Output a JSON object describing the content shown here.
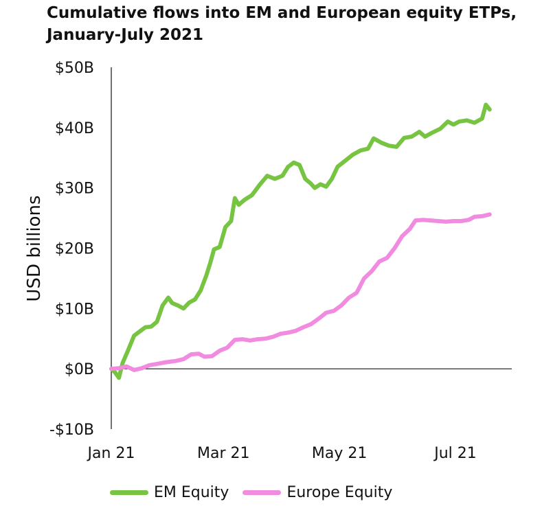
{
  "chart_data": {
    "type": "line",
    "title": "Cumulative flows into EM and European equity ETPs, January-July 2021",
    "xlabel": "",
    "ylabel": "USD billions",
    "ylim": [
      -10,
      50
    ],
    "yticks": [
      50,
      40,
      30,
      20,
      10,
      0,
      -10
    ],
    "ytick_labels": [
      "$50B",
      "$40B",
      "$30B",
      "$20B",
      "$10B",
      "$0B",
      "-$10B"
    ],
    "xlim": [
      "2021-01-01",
      "2021-07-31"
    ],
    "xticks": [
      "2021-01-01",
      "2021-03-01",
      "2021-05-01",
      "2021-07-01"
    ],
    "xtick_labels": [
      "Jan 21",
      "Mar 21",
      "May 21",
      "Jul 21"
    ],
    "grid": false,
    "legend_position": "bottom",
    "series": [
      {
        "name": "EM Equity",
        "color": "#76c442",
        "points": [
          [
            "2021-01-01",
            0
          ],
          [
            "2021-01-03",
            -0.6
          ],
          [
            "2021-01-05",
            -1.5
          ],
          [
            "2021-01-07",
            1
          ],
          [
            "2021-01-10",
            3.2
          ],
          [
            "2021-01-13",
            5.5
          ],
          [
            "2021-01-16",
            6.2
          ],
          [
            "2021-01-19",
            6.9
          ],
          [
            "2021-01-22",
            7.0
          ],
          [
            "2021-01-25",
            7.8
          ],
          [
            "2021-01-28",
            10.5
          ],
          [
            "2021-01-31",
            11.8
          ],
          [
            "2021-02-02",
            10.9
          ],
          [
            "2021-02-05",
            10.5
          ],
          [
            "2021-02-08",
            10.0
          ],
          [
            "2021-02-11",
            11.0
          ],
          [
            "2021-02-14",
            11.5
          ],
          [
            "2021-02-17",
            13.0
          ],
          [
            "2021-02-20",
            15.5
          ],
          [
            "2021-02-22",
            17.5
          ],
          [
            "2021-02-24",
            19.8
          ],
          [
            "2021-02-27",
            20.2
          ],
          [
            "2021-03-02",
            23.5
          ],
          [
            "2021-03-05",
            24.5
          ],
          [
            "2021-03-07",
            28.3
          ],
          [
            "2021-03-09",
            27.2
          ],
          [
            "2021-03-12",
            28.0
          ],
          [
            "2021-03-16",
            28.8
          ],
          [
            "2021-03-20",
            30.5
          ],
          [
            "2021-03-24",
            32.0
          ],
          [
            "2021-03-28",
            31.5
          ],
          [
            "2021-04-01",
            32.0
          ],
          [
            "2021-04-04",
            33.5
          ],
          [
            "2021-04-07",
            34.2
          ],
          [
            "2021-04-10",
            33.8
          ],
          [
            "2021-04-13",
            31.5
          ],
          [
            "2021-04-16",
            30.7
          ],
          [
            "2021-04-18",
            30.0
          ],
          [
            "2021-04-21",
            30.6
          ],
          [
            "2021-04-24",
            30.2
          ],
          [
            "2021-04-27",
            31.5
          ],
          [
            "2021-04-30",
            33.5
          ],
          [
            "2021-05-04",
            34.5
          ],
          [
            "2021-05-08",
            35.5
          ],
          [
            "2021-05-12",
            36.2
          ],
          [
            "2021-05-16",
            36.5
          ],
          [
            "2021-05-19",
            38.2
          ],
          [
            "2021-05-23",
            37.5
          ],
          [
            "2021-05-27",
            37.0
          ],
          [
            "2021-05-31",
            36.8
          ],
          [
            "2021-06-04",
            38.3
          ],
          [
            "2021-06-08",
            38.5
          ],
          [
            "2021-06-12",
            39.3
          ],
          [
            "2021-06-15",
            38.5
          ],
          [
            "2021-06-19",
            39.2
          ],
          [
            "2021-06-23",
            39.8
          ],
          [
            "2021-06-27",
            41.0
          ],
          [
            "2021-06-30",
            40.5
          ],
          [
            "2021-07-03",
            41.0
          ],
          [
            "2021-07-07",
            41.2
          ],
          [
            "2021-07-11",
            40.8
          ],
          [
            "2021-07-15",
            41.5
          ],
          [
            "2021-07-17",
            43.8
          ],
          [
            "2021-07-19",
            43.0
          ]
        ]
      },
      {
        "name": "Europe Equity",
        "color": "#f08be0",
        "points": [
          [
            "2021-01-01",
            0
          ],
          [
            "2021-01-05",
            0.1
          ],
          [
            "2021-01-09",
            0.4
          ],
          [
            "2021-01-13",
            -0.2
          ],
          [
            "2021-01-17",
            0.1
          ],
          [
            "2021-01-21",
            0.6
          ],
          [
            "2021-01-25",
            0.8
          ],
          [
            "2021-01-30",
            1.1
          ],
          [
            "2021-02-04",
            1.3
          ],
          [
            "2021-02-08",
            1.6
          ],
          [
            "2021-02-12",
            2.4
          ],
          [
            "2021-02-16",
            2.5
          ],
          [
            "2021-02-19",
            2.0
          ],
          [
            "2021-02-23",
            2.1
          ],
          [
            "2021-02-27",
            3.0
          ],
          [
            "2021-03-03",
            3.5
          ],
          [
            "2021-03-07",
            4.8
          ],
          [
            "2021-03-11",
            4.9
          ],
          [
            "2021-03-15",
            4.7
          ],
          [
            "2021-03-19",
            4.9
          ],
          [
            "2021-03-23",
            5.0
          ],
          [
            "2021-03-27",
            5.3
          ],
          [
            "2021-03-31",
            5.8
          ],
          [
            "2021-04-04",
            6.0
          ],
          [
            "2021-04-08",
            6.3
          ],
          [
            "2021-04-12",
            6.9
          ],
          [
            "2021-04-16",
            7.4
          ],
          [
            "2021-04-20",
            8.3
          ],
          [
            "2021-04-24",
            9.3
          ],
          [
            "2021-04-28",
            9.6
          ],
          [
            "2021-05-02",
            10.5
          ],
          [
            "2021-05-06",
            11.8
          ],
          [
            "2021-05-10",
            12.6
          ],
          [
            "2021-05-14",
            15.0
          ],
          [
            "2021-05-18",
            16.2
          ],
          [
            "2021-05-22",
            17.8
          ],
          [
            "2021-05-26",
            18.4
          ],
          [
            "2021-05-30",
            20.0
          ],
          [
            "2021-06-03",
            22.0
          ],
          [
            "2021-06-07",
            23.2
          ],
          [
            "2021-06-10",
            24.6
          ],
          [
            "2021-06-14",
            24.7
          ],
          [
            "2021-06-18",
            24.6
          ],
          [
            "2021-06-22",
            24.5
          ],
          [
            "2021-06-26",
            24.4
          ],
          [
            "2021-06-30",
            24.5
          ],
          [
            "2021-07-04",
            24.5
          ],
          [
            "2021-07-08",
            24.7
          ],
          [
            "2021-07-11",
            25.2
          ],
          [
            "2021-07-15",
            25.3
          ],
          [
            "2021-07-19",
            25.6
          ]
        ]
      }
    ]
  }
}
